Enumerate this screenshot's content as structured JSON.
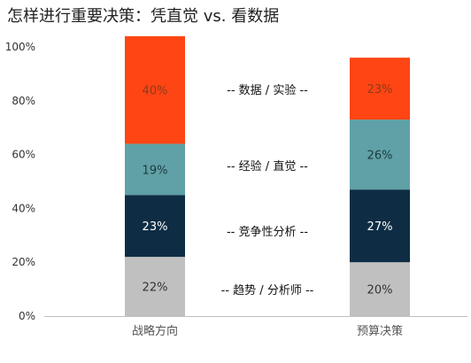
{
  "chart_data": {
    "type": "bar",
    "stacked": true,
    "title": "怎样进行重要决策：凭直觉 vs. 看数据",
    "categories": [
      "战略方向",
      "预算决策"
    ],
    "series": [
      {
        "name": "趋势 / 分析师",
        "values": [
          22,
          20
        ],
        "labels": [
          "22%",
          "20%"
        ]
      },
      {
        "name": "竞争性分析",
        "values": [
          23,
          27
        ],
        "labels": [
          "23%",
          "27%"
        ]
      },
      {
        "name": "经验 / 直觉",
        "values": [
          19,
          26
        ],
        "labels": [
          "19%",
          "26%"
        ]
      },
      {
        "name": "数据 / 实验",
        "values": [
          40,
          23
        ],
        "labels": [
          "40%",
          "23%"
        ]
      }
    ],
    "ylim": [
      0,
      100
    ],
    "y_ticks": [
      "0%",
      "20%",
      "40%",
      "60%",
      "80%",
      "100%"
    ],
    "y_tick_values": [
      0,
      20,
      40,
      60,
      80,
      100
    ],
    "annotations": [
      "-- 数据 / 实验 --",
      "-- 经验 / 直觉 --",
      "-- 竞争性分析 --",
      "-- 趋势 / 分析师 --"
    ],
    "colors": {
      "series": [
        "#c0c0c0",
        "#0e2d45",
        "#5fa1a6",
        "#ff4513"
      ],
      "label_text": [
        "#333333",
        "#ffffff",
        "#1e3a40",
        "#8f3a1c"
      ],
      "axis": "#bfbfbf"
    },
    "grid": false,
    "legend": "inline-center"
  }
}
